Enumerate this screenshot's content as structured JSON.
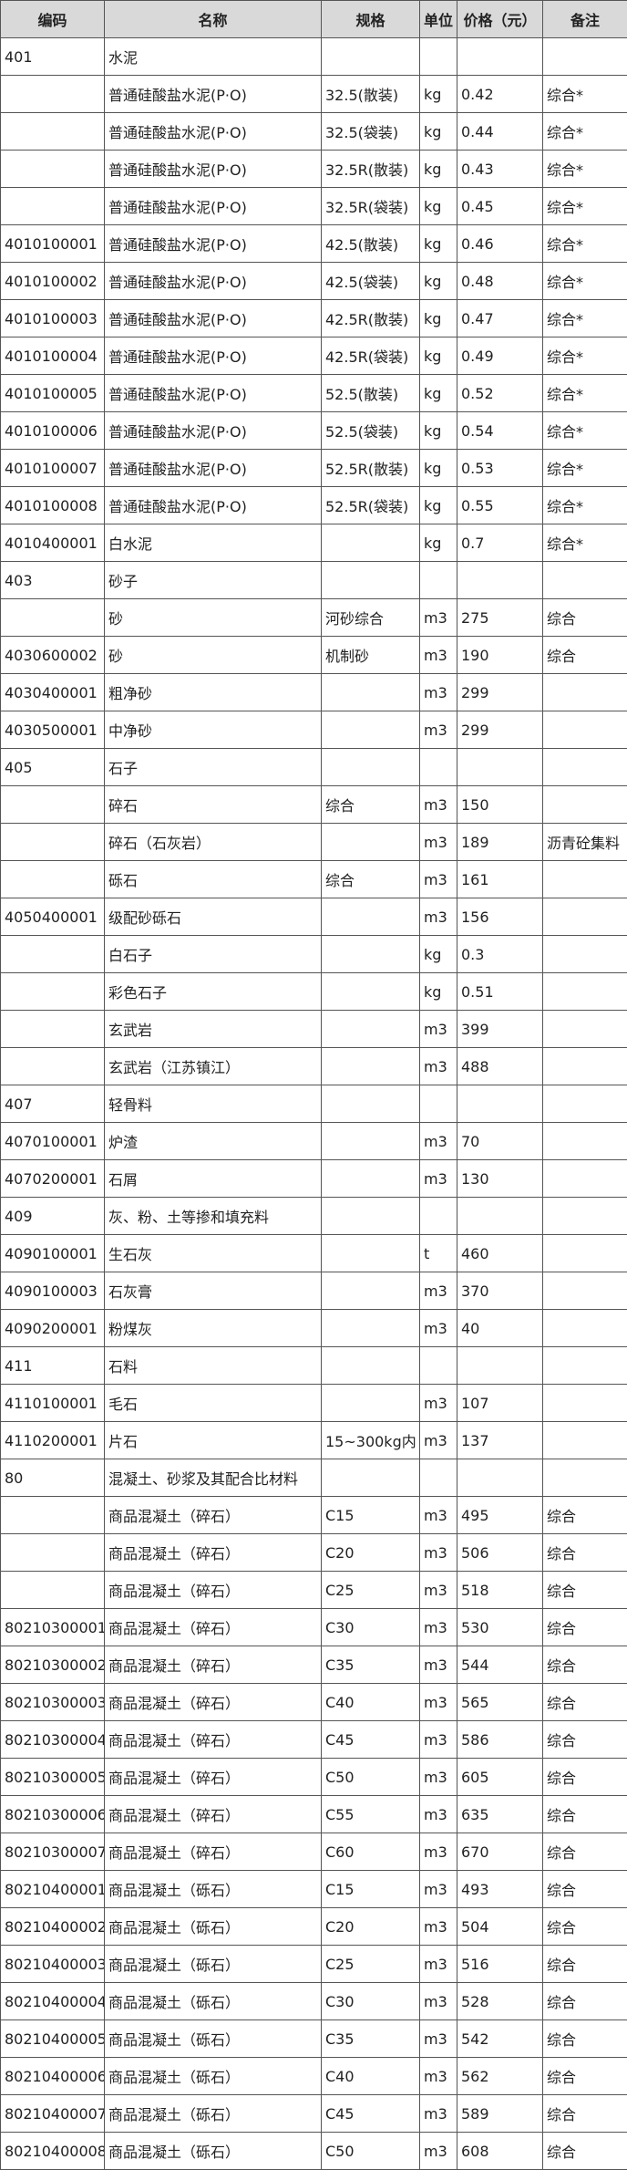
{
  "table": {
    "header": [
      "编码",
      "名称",
      "规格",
      "单位",
      "价格（元）",
      "备注"
    ],
    "rows": [
      [
        "401",
        "水泥",
        null,
        null,
        null,
        null
      ],
      [
        null,
        "普通硅酸盐水泥(P·O)",
        "32.5(散装)",
        "kg",
        "0.42",
        "综合*"
      ],
      [
        null,
        "普通硅酸盐水泥(P·O)",
        "32.5(袋装)",
        "kg",
        "0.44",
        "综合*"
      ],
      [
        null,
        "普通硅酸盐水泥(P·O)",
        "32.5R(散装)",
        "kg",
        "0.43",
        "综合*"
      ],
      [
        null,
        "普通硅酸盐水泥(P·O)",
        "32.5R(袋装)",
        "kg",
        "0.45",
        "综合*"
      ],
      [
        "4010100001",
        "普通硅酸盐水泥(P·O)",
        "42.5(散装)",
        "kg",
        "0.46",
        "综合*"
      ],
      [
        "4010100002",
        "普通硅酸盐水泥(P·O)",
        "42.5(袋装)",
        "kg",
        "0.48",
        "综合*"
      ],
      [
        "4010100003",
        "普通硅酸盐水泥(P·O)",
        "42.5R(散装)",
        "kg",
        "0.47",
        "综合*"
      ],
      [
        "4010100004",
        "普通硅酸盐水泥(P·O)",
        "42.5R(袋装)",
        "kg",
        "0.49",
        "综合*"
      ],
      [
        "4010100005",
        "普通硅酸盐水泥(P·O)",
        "52.5(散装)",
        "kg",
        "0.52",
        "综合*"
      ],
      [
        "4010100006",
        "普通硅酸盐水泥(P·O)",
        "52.5(袋装)",
        "kg",
        "0.54",
        "综合*"
      ],
      [
        "4010100007",
        "普通硅酸盐水泥(P·O)",
        "52.5R(散装)",
        "kg",
        "0.53",
        "综合*"
      ],
      [
        "4010100008",
        "普通硅酸盐水泥(P·O)",
        "52.5R(袋装)",
        "kg",
        "0.55",
        "综合*"
      ],
      [
        "4010400001",
        "白水泥",
        null,
        "kg",
        "0.7",
        "综合*"
      ],
      [
        "403",
        "砂子",
        null,
        null,
        null,
        null
      ],
      [
        null,
        "砂",
        "河砂综合",
        "m3",
        "275",
        "综合"
      ],
      [
        "4030600002",
        "砂",
        "机制砂",
        "m3",
        "190",
        "综合"
      ],
      [
        "4030400001",
        "粗净砂",
        null,
        "m3",
        "299",
        null
      ],
      [
        "4030500001",
        "中净砂",
        null,
        "m3",
        "299",
        null
      ],
      [
        "405",
        "石子",
        null,
        null,
        null,
        null
      ],
      [
        null,
        "碎石",
        "综合",
        "m3",
        "150",
        null
      ],
      [
        null,
        "碎石（石灰岩）",
        null,
        "m3",
        "189",
        "沥青砼集料"
      ],
      [
        null,
        "砾石",
        "综合",
        "m3",
        "161",
        null
      ],
      [
        "4050400001",
        "级配砂砾石",
        null,
        "m3",
        "156",
        null
      ],
      [
        null,
        "白石子",
        null,
        "kg",
        "0.3",
        null
      ],
      [
        null,
        "彩色石子",
        null,
        "kg",
        "0.51",
        null
      ],
      [
        null,
        "玄武岩",
        null,
        "m3",
        "399",
        null
      ],
      [
        null,
        "玄武岩（江苏镇江）",
        null,
        "m3",
        "488",
        null
      ],
      [
        "407",
        "轻骨料",
        null,
        null,
        null,
        null
      ],
      [
        "4070100001",
        "炉渣",
        null,
        "m3",
        "70",
        null
      ],
      [
        "4070200001",
        "石屑",
        null,
        "m3",
        "130",
        null
      ],
      [
        "409",
        "灰、粉、土等掺和填充料",
        null,
        null,
        null,
        null
      ],
      [
        "4090100001",
        "生石灰",
        null,
        "t",
        "460",
        null
      ],
      [
        "4090100003",
        "石灰膏",
        null,
        "m3",
        "370",
        null
      ],
      [
        "4090200001",
        "粉煤灰",
        null,
        "m3",
        "40",
        null
      ],
      [
        "411",
        "石料",
        null,
        null,
        null,
        null
      ],
      [
        "4110100001",
        "毛石",
        null,
        "m3",
        "107",
        null
      ],
      [
        "4110200001",
        "片石",
        "15~300kg内",
        "m3",
        "137",
        null
      ],
      [
        "80",
        "混凝土、砂浆及其配合比材料",
        null,
        null,
        null,
        null
      ],
      [
        null,
        "商品混凝土（碎石）",
        "C15",
        "m3",
        "495",
        "综合"
      ],
      [
        null,
        "商品混凝土（碎石）",
        "C20",
        "m3",
        "506",
        "综合"
      ],
      [
        null,
        "商品混凝土（碎石）",
        "C25",
        "m3",
        "518",
        "综合"
      ],
      [
        "80210300001",
        "商品混凝土（碎石）",
        "C30",
        "m3",
        "530",
        "综合"
      ],
      [
        "80210300002",
        "商品混凝土（碎石）",
        "C35",
        "m3",
        "544",
        "综合"
      ],
      [
        "80210300003",
        "商品混凝土（碎石）",
        "C40",
        "m3",
        "565",
        "综合"
      ],
      [
        "80210300004",
        "商品混凝土（碎石）",
        "C45",
        "m3",
        "586",
        "综合"
      ],
      [
        "80210300005",
        "商品混凝土（碎石）",
        "C50",
        "m3",
        "605",
        "综合"
      ],
      [
        "80210300006",
        "商品混凝土（碎石）",
        "C55",
        "m3",
        "635",
        "综合"
      ],
      [
        "80210300007",
        "商品混凝土（碎石）",
        "C60",
        "m3",
        "670",
        "综合"
      ],
      [
        "80210400001",
        "商品混凝土（砾石）",
        "C15",
        "m3",
        "493",
        "综合"
      ],
      [
        "80210400002",
        "商品混凝土（砾石）",
        "C20",
        "m3",
        "504",
        "综合"
      ],
      [
        "80210400003",
        "商品混凝土（砾石）",
        "C25",
        "m3",
        "516",
        "综合"
      ],
      [
        "80210400004",
        "商品混凝土（砾石）",
        "C30",
        "m3",
        "528",
        "综合"
      ],
      [
        "80210400005",
        "商品混凝土（砾石）",
        "C35",
        "m3",
        "542",
        "综合"
      ],
      [
        "80210400006",
        "商品混凝土（砾石）",
        "C40",
        "m3",
        "562",
        "综合"
      ],
      [
        "80210400007",
        "商品混凝土（砾石）",
        "C45",
        "m3",
        "589",
        "综合"
      ],
      [
        "80210400008",
        "商品混凝土（砾石）",
        "C50",
        "m3",
        "608",
        "综合"
      ]
    ]
  }
}
